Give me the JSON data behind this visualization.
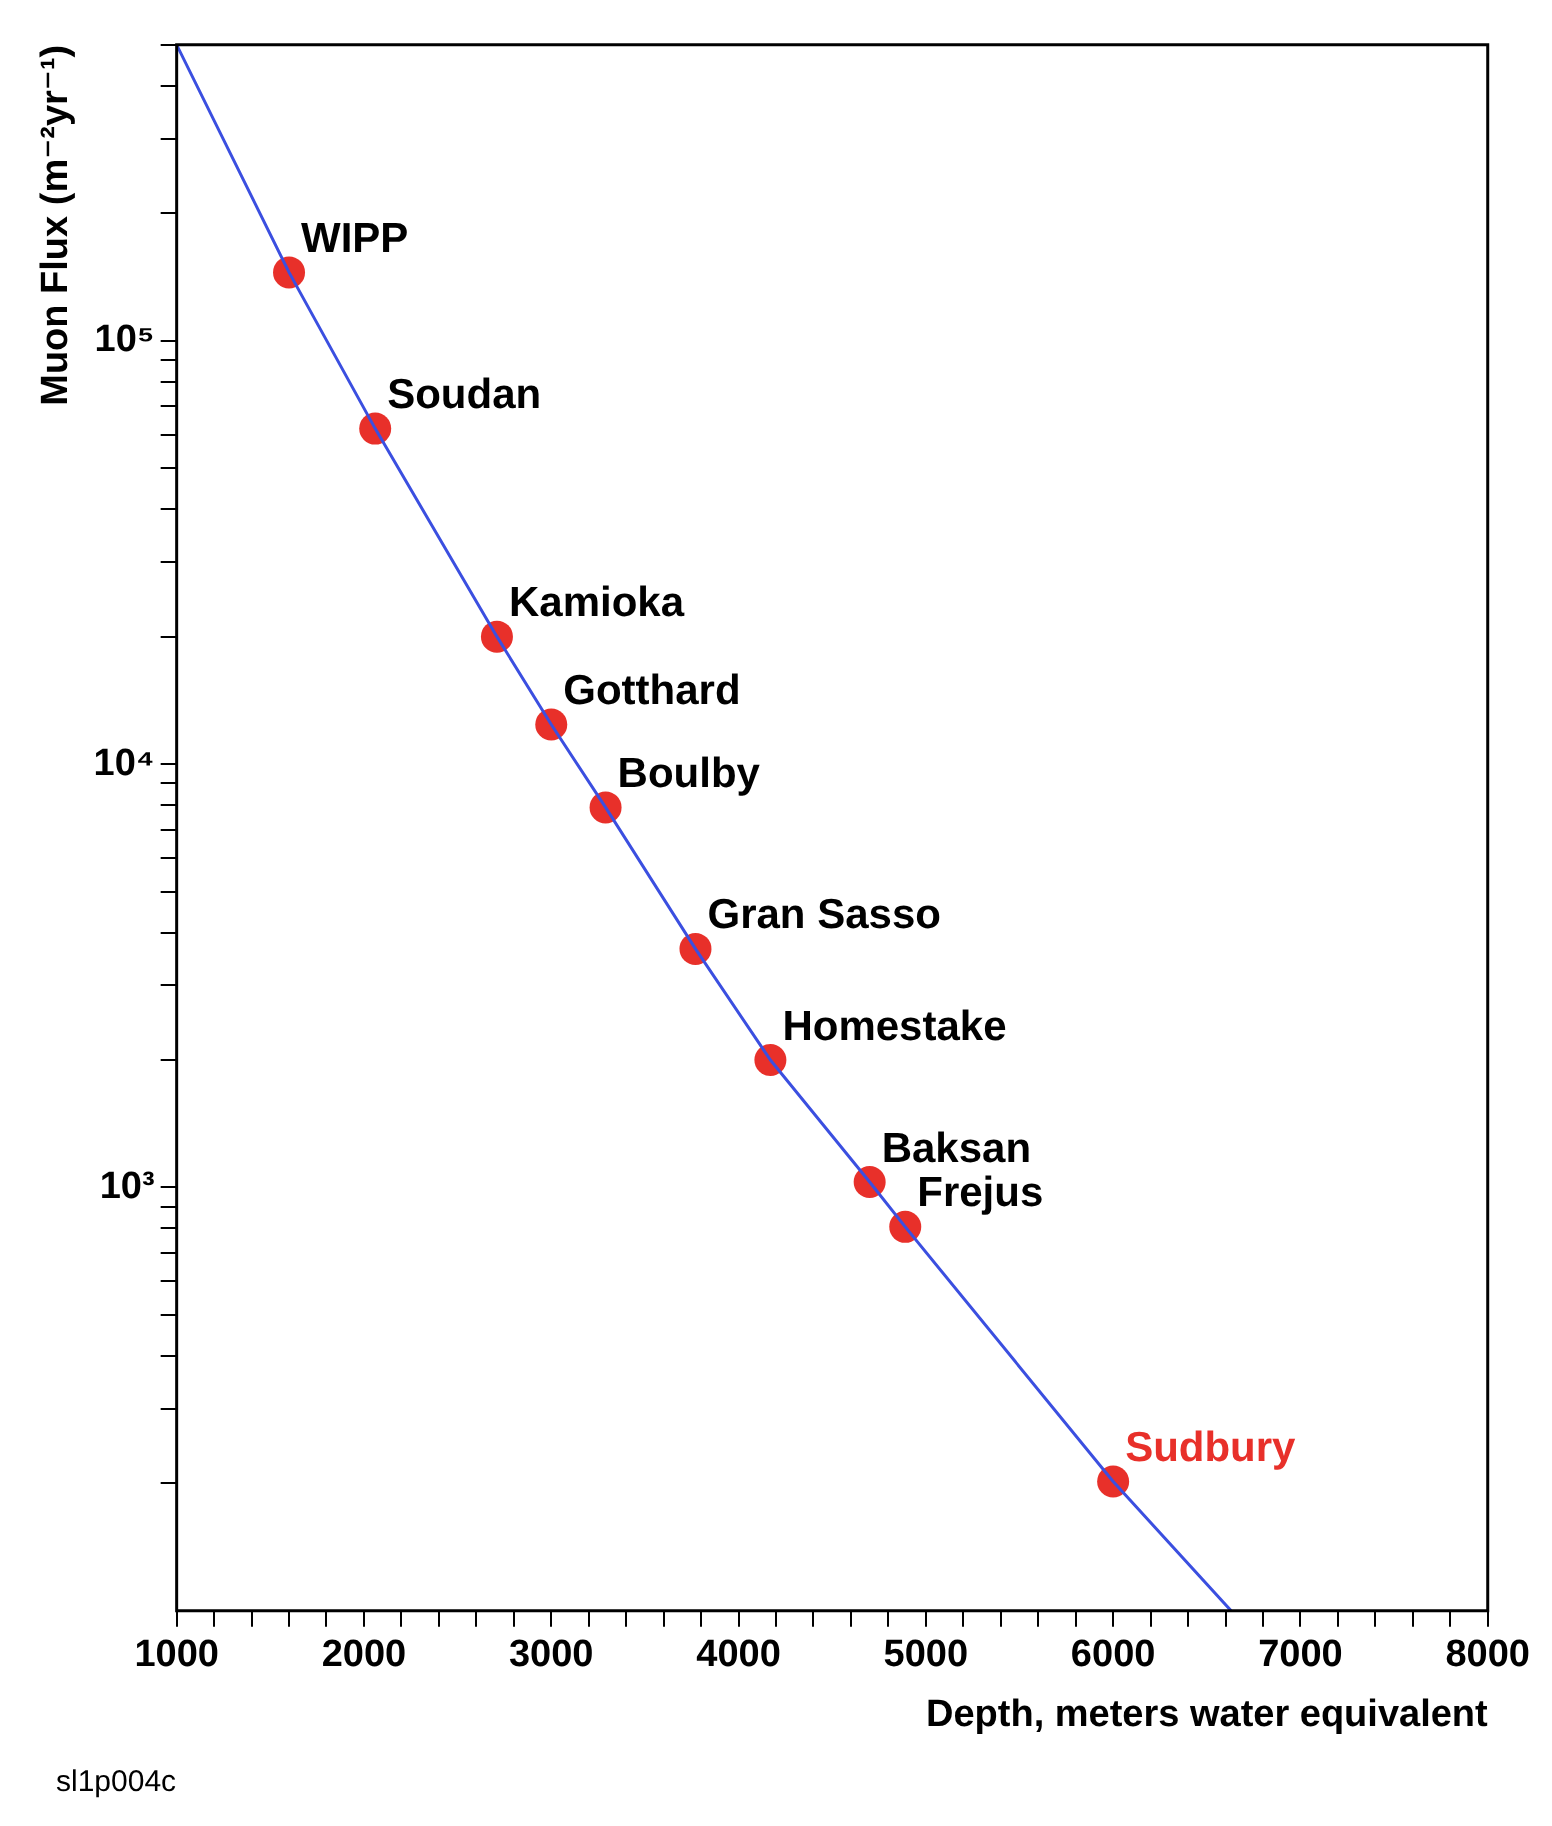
{
  "chart_data": {
    "type": "scatter",
    "xlabel": "Depth, meters water equivalent",
    "ylabel": "Muon Flux (m⁻²yr⁻¹)",
    "log": "y",
    "grid": false,
    "legend": false,
    "marker": "circle",
    "xlim": [
      1000,
      8000
    ],
    "xticks": [
      1000,
      {
        "value": 1200,
        "label": null
      },
      {
        "value": 1400,
        "label": null
      },
      {
        "value": 1600,
        "label": null
      },
      {
        "value": 1800,
        "label": null
      },
      2000,
      {
        "value": 2200,
        "label": null
      },
      {
        "value": 2400,
        "label": null
      },
      {
        "value": 2600,
        "label": null
      },
      {
        "value": 2800,
        "label": null
      },
      3000,
      {
        "value": 3200,
        "label": null
      },
      {
        "value": 3400,
        "label": null
      },
      {
        "value": 3600,
        "label": null
      },
      {
        "value": 3800,
        "label": null
      },
      4000,
      {
        "value": 4200,
        "label": null
      },
      {
        "value": 4400,
        "label": null
      },
      {
        "value": 4600,
        "label": null
      },
      {
        "value": 4800,
        "label": null
      },
      5000,
      {
        "value": 5200,
        "label": null
      },
      {
        "value": 5400,
        "label": null
      },
      {
        "value": 5600,
        "label": null
      },
      {
        "value": 5800,
        "label": null
      },
      6000,
      {
        "value": 6200,
        "label": null
      },
      {
        "value": 6400,
        "label": null
      },
      {
        "value": 6600,
        "label": null
      },
      {
        "value": 6800,
        "label": null
      },
      7000,
      {
        "value": 7200,
        "label": null
      },
      {
        "value": 7400,
        "label": null
      },
      {
        "value": 7600,
        "label": null
      },
      {
        "value": 7800,
        "label": null
      },
      8000
    ],
    "ylim": [
      100,
      500000
    ],
    "yticks": [
      {
        "value": 200,
        "label": null
      },
      {
        "value": 300,
        "label": null
      },
      {
        "value": 400,
        "label": null
      },
      {
        "value": 500,
        "label": null
      },
      {
        "value": 600,
        "label": null
      },
      {
        "value": 700,
        "label": null
      },
      {
        "value": 800,
        "label": null
      },
      {
        "value": 900,
        "label": null
      },
      {
        "value": 1000,
        "label": "10³"
      },
      {
        "value": 2000,
        "label": null
      },
      {
        "value": 3000,
        "label": null
      },
      {
        "value": 4000,
        "label": null
      },
      {
        "value": 5000,
        "label": null
      },
      {
        "value": 6000,
        "label": null
      },
      {
        "value": 7000,
        "label": null
      },
      {
        "value": 8000,
        "label": null
      },
      {
        "value": 9000,
        "label": null
      },
      {
        "value": 10000,
        "label": "10⁴"
      },
      {
        "value": 20000,
        "label": null
      },
      {
        "value": 30000,
        "label": null
      },
      {
        "value": 40000,
        "label": null
      },
      {
        "value": 50000,
        "label": null
      },
      {
        "value": 60000,
        "label": null
      },
      {
        "value": 70000,
        "label": null
      },
      {
        "value": 80000,
        "label": null
      },
      {
        "value": 90000,
        "label": null
      },
      {
        "value": 100000,
        "label": "10⁵"
      },
      {
        "value": 200000,
        "label": null
      },
      {
        "value": 300000,
        "label": null
      },
      {
        "value": 400000,
        "label": null
      },
      {
        "value": 500000,
        "label": null
      }
    ],
    "series": [
      {
        "type": "line",
        "color": "#3b4fe0",
        "marker": "none",
        "x": [
          1000,
          1600,
          2060,
          2710,
          3000,
          3290,
          3770,
          4170,
          4700,
          4890,
          6000,
          6630
        ],
        "values": [
          500000,
          145000,
          62000,
          20000,
          12400,
          7900,
          3660,
          2000,
          1030,
          807,
          202,
          100
        ]
      },
      {
        "type": "scatter",
        "color": "#e8302a",
        "x": [
          1600,
          2060,
          2710,
          3000,
          3290,
          3770,
          4170,
          4700,
          4890
        ],
        "values": [
          145000,
          62000,
          20000,
          12400,
          7900,
          3660,
          2000,
          1030,
          807
        ]
      },
      {
        "type": "scatter",
        "name": "Sudbury",
        "color": "#e8302a",
        "x": [
          6000
        ],
        "values": [
          202
        ]
      }
    ],
    "annotations": [
      {
        "text": "WIPP",
        "x": 1600,
        "y": 145000
      },
      {
        "text": "Soudan",
        "x": 2060,
        "y": 62000
      },
      {
        "text": "Kamioka",
        "x": 2710,
        "y": 20000
      },
      {
        "text": "Gotthard",
        "x": 3000,
        "y": 12400
      },
      {
        "text": "Boulby",
        "x": 3290,
        "y": 7900
      },
      {
        "text": "Gran Sasso",
        "x": 3770,
        "y": 3660
      },
      {
        "text": "Homestake",
        "x": 4170,
        "y": 2000
      },
      {
        "text": "Baksan",
        "x": 4700,
        "y": 1030
      },
      {
        "text": "Frejus",
        "x": 4890,
        "y": 807
      },
      "sl1p004c"
    ]
  }
}
